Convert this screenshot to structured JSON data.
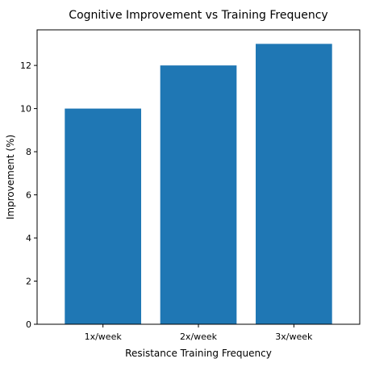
{
  "chart_data": {
    "type": "bar",
    "title": "Cognitive Improvement vs Training Frequency",
    "xlabel": "Resistance Training Frequency",
    "ylabel": "Improvement (%)",
    "categories": [
      "1x/week",
      "2x/week",
      "3x/week"
    ],
    "values": [
      10,
      12,
      13
    ],
    "ylim": [
      0,
      13.65
    ],
    "yticks": [
      0,
      2,
      4,
      6,
      8,
      10,
      12
    ],
    "grid": false,
    "bar_color": "#1f77b4"
  }
}
